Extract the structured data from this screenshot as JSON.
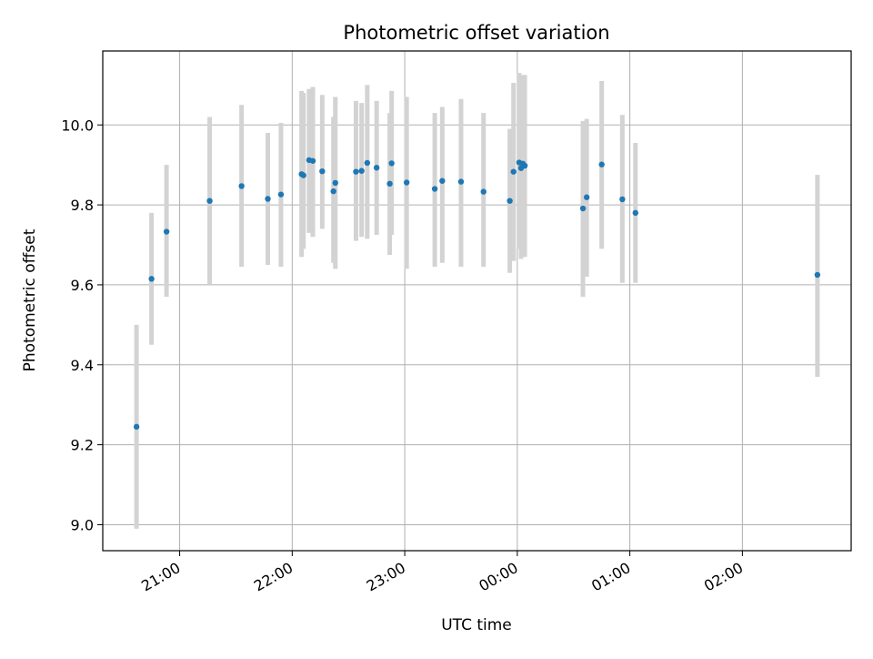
{
  "chart_data": {
    "type": "scatter",
    "title": "Photometric offset variation",
    "xlabel": "UTC time",
    "ylabel": "Photometric offset",
    "x_axis_type": "time",
    "xlim": [
      "20:19",
      "02:58"
    ],
    "ylim": [
      8.935,
      10.185
    ],
    "xticks": [
      "21:00",
      "22:00",
      "23:00",
      "00:00",
      "01:00",
      "02:00"
    ],
    "yticks": [
      9.0,
      9.2,
      9.4,
      9.6,
      9.8,
      10.0
    ],
    "grid": true,
    "legend": "none",
    "colors": {
      "point": "#1f77b4",
      "errorbar": "#d3d3d3",
      "grid": "#b0b0b0"
    },
    "points": [
      {
        "x": "20:37",
        "y": 9.245,
        "ylow": 8.99,
        "yhigh": 9.5
      },
      {
        "x": "20:45",
        "y": 9.615,
        "ylow": 9.45,
        "yhigh": 9.78
      },
      {
        "x": "20:53",
        "y": 9.733,
        "ylow": 9.57,
        "yhigh": 9.9
      },
      {
        "x": "21:16",
        "y": 9.81,
        "ylow": 9.6,
        "yhigh": 10.02
      },
      {
        "x": "21:33",
        "y": 9.847,
        "ylow": 9.645,
        "yhigh": 10.05
      },
      {
        "x": "21:47",
        "y": 9.815,
        "ylow": 9.65,
        "yhigh": 9.98
      },
      {
        "x": "21:54",
        "y": 9.826,
        "ylow": 9.645,
        "yhigh": 10.005
      },
      {
        "x": "22:05",
        "y": 9.877,
        "ylow": 9.67,
        "yhigh": 10.085
      },
      {
        "x": "22:06",
        "y": 9.874,
        "ylow": 9.69,
        "yhigh": 10.08
      },
      {
        "x": "22:09",
        "y": 9.912,
        "ylow": 9.73,
        "yhigh": 10.09
      },
      {
        "x": "22:11",
        "y": 9.91,
        "ylow": 9.72,
        "yhigh": 10.095
      },
      {
        "x": "22:16",
        "y": 9.884,
        "ylow": 9.74,
        "yhigh": 10.075
      },
      {
        "x": "22:22",
        "y": 9.834,
        "ylow": 9.655,
        "yhigh": 10.02
      },
      {
        "x": "22:23",
        "y": 9.855,
        "ylow": 9.64,
        "yhigh": 10.07
      },
      {
        "x": "22:34",
        "y": 9.883,
        "ylow": 9.71,
        "yhigh": 10.06
      },
      {
        "x": "22:37",
        "y": 9.885,
        "ylow": 9.72,
        "yhigh": 10.055
      },
      {
        "x": "22:40",
        "y": 9.905,
        "ylow": 9.715,
        "yhigh": 10.1
      },
      {
        "x": "22:45",
        "y": 9.893,
        "ylow": 9.725,
        "yhigh": 10.06
      },
      {
        "x": "22:52",
        "y": 9.853,
        "ylow": 9.675,
        "yhigh": 10.03
      },
      {
        "x": "22:53",
        "y": 9.904,
        "ylow": 9.725,
        "yhigh": 10.085
      },
      {
        "x": "23:01",
        "y": 9.856,
        "ylow": 9.64,
        "yhigh": 10.07
      },
      {
        "x": "23:16",
        "y": 9.84,
        "ylow": 9.645,
        "yhigh": 10.03
      },
      {
        "x": "23:20",
        "y": 9.86,
        "ylow": 9.655,
        "yhigh": 10.045
      },
      {
        "x": "23:30",
        "y": 9.858,
        "ylow": 9.645,
        "yhigh": 10.065
      },
      {
        "x": "23:42",
        "y": 9.833,
        "ylow": 9.645,
        "yhigh": 10.03
      },
      {
        "x": "23:56",
        "y": 9.81,
        "ylow": 9.63,
        "yhigh": 9.99
      },
      {
        "x": "23:58",
        "y": 9.883,
        "ylow": 9.66,
        "yhigh": 10.105
      },
      {
        "x": "00:01",
        "y": 9.906,
        "ylow": 9.69,
        "yhigh": 10.13
      },
      {
        "x": "00:02",
        "y": 9.892,
        "ylow": 9.665,
        "yhigh": 10.12
      },
      {
        "x": "00:03",
        "y": 9.903,
        "ylow": 9.68,
        "yhigh": 10.125
      },
      {
        "x": "00:04",
        "y": 9.898,
        "ylow": 9.67,
        "yhigh": 10.125
      },
      {
        "x": "00:35",
        "y": 9.791,
        "ylow": 9.57,
        "yhigh": 10.01
      },
      {
        "x": "00:37",
        "y": 9.819,
        "ylow": 9.62,
        "yhigh": 10.015
      },
      {
        "x": "00:45",
        "y": 9.901,
        "ylow": 9.69,
        "yhigh": 10.11
      },
      {
        "x": "00:56",
        "y": 9.814,
        "ylow": 9.605,
        "yhigh": 10.025
      },
      {
        "x": "01:03",
        "y": 9.78,
        "ylow": 9.605,
        "yhigh": 9.955
      },
      {
        "x": "02:40",
        "y": 9.625,
        "ylow": 9.37,
        "yhigh": 9.875
      }
    ]
  }
}
